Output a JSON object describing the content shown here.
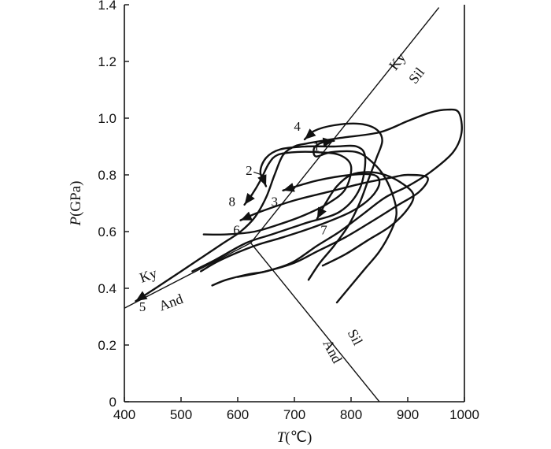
{
  "chart_data": {
    "type": "line",
    "title": "",
    "xlabel": {
      "italic": "T",
      "rest": "(℃)"
    },
    "ylabel": {
      "italic": "P",
      "rest": "(GPa)"
    },
    "xlim": [
      400,
      1000
    ],
    "ylim": [
      0,
      1.4
    ],
    "xticks": [
      400,
      500,
      600,
      700,
      800,
      900,
      1000
    ],
    "yticks": [
      "0",
      "0.2",
      "0.4",
      "0.6",
      "0.8",
      "1.0",
      "1.2",
      "1.4"
    ],
    "grid": false,
    "reaction_lines": [
      {
        "name": "Ky-Sil",
        "points": [
          [
            623,
            0.56
          ],
          [
            955,
            1.39
          ]
        ]
      },
      {
        "name": "Ky-And",
        "points": [
          [
            400,
            0.33
          ],
          [
            623,
            0.56
          ]
        ]
      },
      {
        "name": "Sil-And",
        "points": [
          [
            623,
            0.56
          ],
          [
            850,
            0.0
          ]
        ]
      }
    ],
    "field_labels": [
      {
        "text": "Ky",
        "x": 888,
        "y": 1.19,
        "rotate": -52
      },
      {
        "text": "Sil",
        "x": 922,
        "y": 1.14,
        "rotate": -52
      },
      {
        "text": "Ky",
        "x": 445,
        "y": 0.43,
        "rotate": -20
      },
      {
        "text": "And",
        "x": 485,
        "y": 0.335,
        "rotate": -20
      },
      {
        "text": "Sil",
        "x": 800,
        "y": 0.22,
        "rotate": 62
      },
      {
        "text": "And",
        "x": 760,
        "y": 0.17,
        "rotate": 62
      }
    ],
    "pt_paths": [
      {
        "label": "1",
        "label_pos": [
          739,
          0.885
        ],
        "points": [
          [
            770,
            0.92
          ],
          [
            750,
            0.915
          ],
          [
            735,
            0.895
          ],
          [
            738,
            0.865
          ],
          [
            765,
            0.88
          ],
          [
            810,
            0.88
          ],
          [
            840,
            0.84
          ],
          [
            860,
            0.79
          ],
          [
            875,
            0.72
          ],
          [
            880,
            0.66
          ],
          [
            870,
            0.6
          ],
          [
            850,
            0.53
          ],
          [
            825,
            0.47
          ],
          [
            800,
            0.41
          ],
          [
            775,
            0.35
          ]
        ],
        "arrow_at": "start"
      },
      {
        "label": "2",
        "label_pos": [
          620,
          0.8
        ],
        "points": [
          [
            650,
            0.76
          ],
          [
            640,
            0.81
          ],
          [
            650,
            0.86
          ],
          [
            675,
            0.89
          ],
          [
            720,
            0.9
          ],
          [
            770,
            0.9
          ],
          [
            810,
            0.9
          ],
          [
            825,
            0.86
          ],
          [
            815,
            0.75
          ],
          [
            780,
            0.67
          ],
          [
            720,
            0.63
          ],
          [
            660,
            0.59
          ],
          [
            615,
            0.56
          ],
          [
            560,
            0.5
          ],
          [
            520,
            0.46
          ]
        ],
        "arrow_at": "start"
      },
      {
        "label": "3",
        "label_pos": [
          665,
          0.69
        ],
        "points": [
          [
            680,
            0.745
          ],
          [
            740,
            0.78
          ],
          [
            800,
            0.8
          ],
          [
            840,
            0.8
          ],
          [
            850,
            0.77
          ],
          [
            835,
            0.72
          ],
          [
            800,
            0.67
          ],
          [
            740,
            0.62
          ],
          [
            680,
            0.58
          ],
          [
            630,
            0.55
          ],
          [
            570,
            0.5
          ],
          [
            535,
            0.46
          ]
        ],
        "arrow_at": "start"
      },
      {
        "label": "4",
        "label_pos": [
          705,
          0.955
        ],
        "points": [
          [
            718,
            0.925
          ],
          [
            735,
            0.955
          ],
          [
            770,
            0.975
          ],
          [
            815,
            0.98
          ],
          [
            845,
            0.96
          ],
          [
            855,
            0.92
          ],
          [
            845,
            0.86
          ],
          [
            830,
            0.78
          ],
          [
            815,
            0.7
          ],
          [
            795,
            0.62
          ],
          [
            770,
            0.55
          ],
          [
            745,
            0.49
          ],
          [
            725,
            0.43
          ]
        ],
        "arrow_at": "start"
      },
      {
        "label": "5",
        "label_pos": [
          432,
          0.32
        ],
        "points": [
          [
            420,
            0.355
          ],
          [
            470,
            0.42
          ],
          [
            530,
            0.5
          ],
          [
            575,
            0.56
          ],
          [
            605,
            0.6
          ],
          [
            630,
            0.65
          ],
          [
            650,
            0.72
          ],
          [
            665,
            0.8
          ],
          [
            680,
            0.87
          ],
          [
            700,
            0.9
          ],
          [
            720,
            0.91
          ],
          [
            780,
            0.93
          ],
          [
            850,
            0.95
          ],
          [
            900,
            0.99
          ],
          [
            940,
            1.02
          ],
          [
            970,
            1.03
          ],
          [
            990,
            1.02
          ],
          [
            995,
            0.95
          ],
          [
            980,
            0.88
          ],
          [
            940,
            0.81
          ],
          [
            900,
            0.76
          ],
          [
            860,
            0.72
          ],
          [
            820,
            0.66
          ],
          [
            780,
            0.6
          ],
          [
            740,
            0.55
          ],
          [
            695,
            0.49
          ],
          [
            650,
            0.46
          ],
          [
            620,
            0.45
          ],
          [
            580,
            0.43
          ],
          [
            555,
            0.41
          ]
        ],
        "arrow_at": "start"
      },
      {
        "label": "6",
        "label_pos": [
          598,
          0.59
        ],
        "points": [
          [
            605,
            0.64
          ],
          [
            640,
            0.67
          ],
          [
            700,
            0.71
          ],
          [
            760,
            0.74
          ],
          [
            820,
            0.77
          ],
          [
            870,
            0.79
          ],
          [
            900,
            0.8
          ],
          [
            935,
            0.79
          ],
          [
            920,
            0.74
          ],
          [
            880,
            0.69
          ],
          [
            840,
            0.64
          ],
          [
            790,
            0.58
          ],
          [
            740,
            0.53
          ],
          [
            700,
            0.49
          ],
          [
            650,
            0.46
          ],
          [
            600,
            0.44
          ]
        ],
        "arrow_at": "start"
      },
      {
        "label": "7",
        "label_pos": [
          752,
          0.59
        ],
        "points": [
          [
            740,
            0.645
          ],
          [
            755,
            0.7
          ],
          [
            775,
            0.76
          ],
          [
            800,
            0.8
          ],
          [
            830,
            0.81
          ],
          [
            860,
            0.8
          ],
          [
            890,
            0.77
          ],
          [
            910,
            0.73
          ],
          [
            900,
            0.68
          ],
          [
            870,
            0.62
          ],
          [
            830,
            0.57
          ],
          [
            790,
            0.52
          ],
          [
            750,
            0.48
          ]
        ],
        "arrow_at": "start"
      },
      {
        "label": "8",
        "label_pos": [
          590,
          0.69
        ],
        "points": [
          [
            612,
            0.695
          ],
          [
            625,
            0.73
          ],
          [
            640,
            0.78
          ],
          [
            655,
            0.84
          ],
          [
            670,
            0.87
          ],
          [
            700,
            0.88
          ],
          [
            740,
            0.88
          ],
          [
            780,
            0.87
          ],
          [
            800,
            0.83
          ],
          [
            790,
            0.75
          ],
          [
            760,
            0.7
          ],
          [
            720,
            0.66
          ],
          [
            680,
            0.63
          ],
          [
            630,
            0.6
          ],
          [
            580,
            0.59
          ],
          [
            540,
            0.59
          ]
        ],
        "arrow_at": "start"
      }
    ]
  }
}
